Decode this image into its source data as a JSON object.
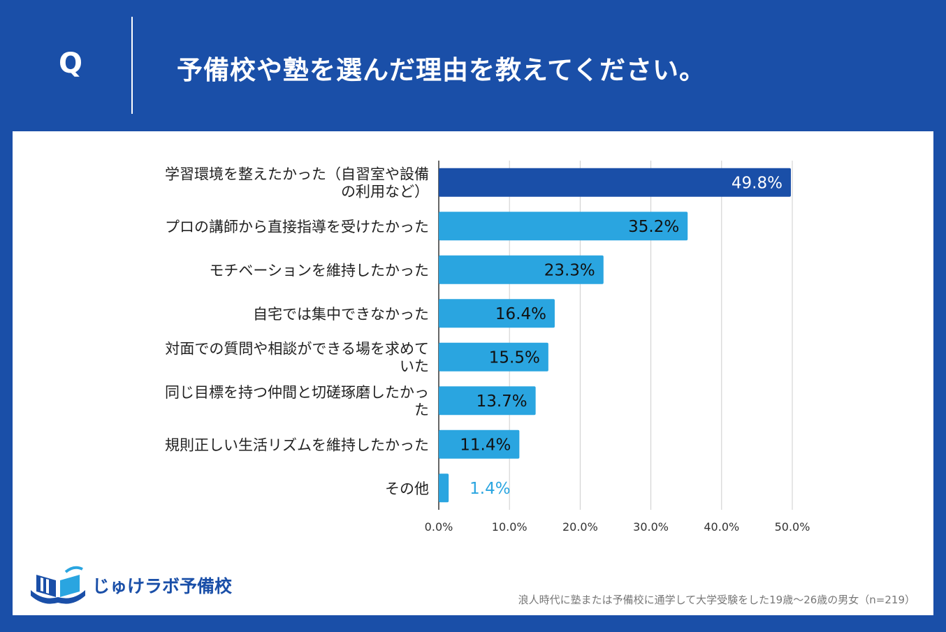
{
  "header": {
    "q_mark": "Q",
    "question": "予備校や塾を選んだ理由を教えてください。"
  },
  "colors": {
    "background": "#1a4fa8",
    "highlight_bar": "#1a4fa8",
    "bar": "#2aa5e0",
    "small_label": "#2aa5e0",
    "grid": "#cccccc"
  },
  "chart_data": {
    "type": "bar",
    "orientation": "horizontal",
    "categories": [
      [
        "学習環境を整えたかった（自習室や設備",
        "の利用など）"
      ],
      [
        "プロの講師から直接指導を受けたかった"
      ],
      [
        "モチベーションを維持したかった"
      ],
      [
        "自宅では集中できなかった"
      ],
      [
        "対面での質問や相談ができる場を求めて",
        "いた"
      ],
      [
        "同じ目標を持つ仲間と切磋琢磨したかっ",
        "た"
      ],
      [
        "規則正しい生活リズムを維持したかった"
      ],
      [
        "その他"
      ]
    ],
    "values": [
      49.8,
      35.2,
      23.3,
      16.4,
      15.5,
      13.7,
      11.4,
      1.4
    ],
    "value_labels": [
      "49.8%",
      "35.2%",
      "23.3%",
      "16.4%",
      "15.5%",
      "13.7%",
      "11.4%",
      "1.4%"
    ],
    "xlim": [
      0,
      50
    ],
    "xticks": [
      0,
      10,
      20,
      30,
      40,
      50
    ],
    "xtick_labels": [
      "0.0%",
      "10.0%",
      "20.0%",
      "30.0%",
      "40.0%",
      "50.0%"
    ],
    "grid": true
  },
  "footer": {
    "logo_text": "じゅけラボ予備校",
    "note": "浪人時代に塾または予備校に通学して大学受験をした19歳〜26歳の男女（n=219）"
  }
}
